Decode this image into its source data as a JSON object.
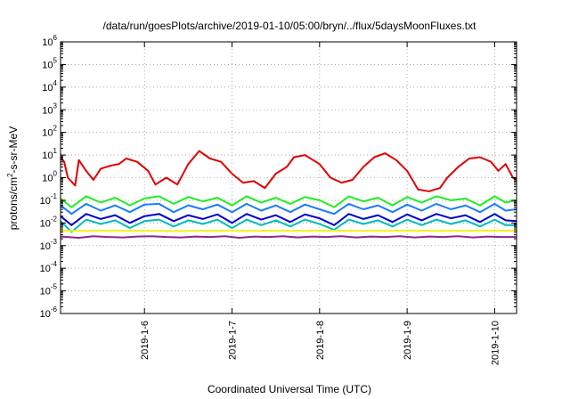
{
  "chart_data": {
    "type": "line",
    "title": "/data/run/goesPlots/archive/2019-01-10/05:00/bryn/../flux/5daysMoonFluxes.txt",
    "xlabel": "Coordinated Universal Time (UTC)",
    "ylabel": "protons/cm²-s-sr-MeV",
    "yscale": "log",
    "ylim": [
      1e-06,
      1000000.0
    ],
    "xlim": [
      "2019-01-05T01:00",
      "2019-01-10T06:00"
    ],
    "grid": true,
    "y_ticks": [
      {
        "base": "10",
        "exp": "-6",
        "value": 1e-06
      },
      {
        "base": "10",
        "exp": "-5",
        "value": 1e-05
      },
      {
        "base": "10",
        "exp": "-4",
        "value": 0.0001
      },
      {
        "base": "10",
        "exp": "-3",
        "value": 0.001
      },
      {
        "base": "10",
        "exp": "-2",
        "value": 0.01
      },
      {
        "base": "10",
        "exp": "-1",
        "value": 0.1
      },
      {
        "base": "10",
        "exp": "0",
        "value": 1
      },
      {
        "base": "10",
        "exp": "1",
        "value": 10.0
      },
      {
        "base": "10",
        "exp": "2",
        "value": 100.0
      },
      {
        "base": "10",
        "exp": "3",
        "value": 1000.0
      },
      {
        "base": "10",
        "exp": "4",
        "value": 10000.0
      },
      {
        "base": "10",
        "exp": "5",
        "value": 100000.0
      },
      {
        "base": "10",
        "exp": "6",
        "value": 1000000.0
      }
    ],
    "x_ticks": [
      {
        "label": "2019-1-6",
        "value": "2019-01-06T00:00"
      },
      {
        "label": "2019-1-7",
        "value": "2019-01-07T00:00"
      },
      {
        "label": "2019-1-8",
        "value": "2019-01-08T00:00"
      },
      {
        "label": "2019-1-9",
        "value": "2019-01-09T00:00"
      },
      {
        "label": "2019-1-10",
        "value": "2019-01-10T00:00"
      }
    ],
    "series": [
      {
        "color": "#e00000",
        "x": [
          "2019-01-05T01:00",
          "2019-01-05T02:00",
          "2019-01-05T03:00",
          "2019-01-05T05:00",
          "2019-01-05T06:00",
          "2019-01-05T08:00",
          "2019-01-05T10:00",
          "2019-01-05T12:00",
          "2019-01-05T15:00",
          "2019-01-05T17:00",
          "2019-01-05T19:00",
          "2019-01-05T22:00",
          "2019-01-06T01:00",
          "2019-01-06T03:00",
          "2019-01-06T06:00",
          "2019-01-06T09:00",
          "2019-01-06T12:00",
          "2019-01-06T15:00",
          "2019-01-06T18:00",
          "2019-01-06T21:00",
          "2019-01-07T00:00",
          "2019-01-07T03:00",
          "2019-01-07T06:00",
          "2019-01-07T09:00",
          "2019-01-07T12:00",
          "2019-01-07T15:00",
          "2019-01-07T17:00",
          "2019-01-07T20:00",
          "2019-01-08T00:00",
          "2019-01-08T03:00",
          "2019-01-08T06:00",
          "2019-01-08T09:00",
          "2019-01-08T12:00",
          "2019-01-08T15:00",
          "2019-01-08T18:00",
          "2019-01-08T21:00",
          "2019-01-09T00:00",
          "2019-01-09T03:00",
          "2019-01-09T06:00",
          "2019-01-09T09:00",
          "2019-01-09T11:00",
          "2019-01-09T14:00",
          "2019-01-09T17:00",
          "2019-01-09T20:00",
          "2019-01-09T23:00",
          "2019-01-10T01:00",
          "2019-01-10T03:00",
          "2019-01-10T04:00",
          "2019-01-10T05:00",
          "2019-01-10T06:00"
        ],
        "values": [
          8,
          5,
          1,
          0.45,
          6,
          2,
          0.8,
          2.5,
          3.5,
          4,
          7,
          5,
          2,
          0.5,
          1,
          0.5,
          4,
          15,
          7,
          5,
          1.5,
          0.6,
          0.7,
          0.35,
          1.5,
          3,
          8,
          10,
          4,
          1,
          0.6,
          0.8,
          3,
          8,
          12,
          6,
          2,
          0.3,
          0.25,
          0.35,
          1,
          3,
          7,
          8,
          5,
          2,
          4,
          2,
          1,
          0.8
        ]
      },
      {
        "color": "#22ee22",
        "x": [
          "2019-01-05T01:00",
          "2019-01-05T04:00",
          "2019-01-05T08:00",
          "2019-01-05T12:00",
          "2019-01-05T16:00",
          "2019-01-05T20:00",
          "2019-01-06T00:00",
          "2019-01-06T04:00",
          "2019-01-06T08:00",
          "2019-01-06T12:00",
          "2019-01-06T16:00",
          "2019-01-06T20:00",
          "2019-01-07T00:00",
          "2019-01-07T04:00",
          "2019-01-07T08:00",
          "2019-01-07T12:00",
          "2019-01-07T16:00",
          "2019-01-07T20:00",
          "2019-01-08T00:00",
          "2019-01-08T04:00",
          "2019-01-08T08:00",
          "2019-01-08T12:00",
          "2019-01-08T16:00",
          "2019-01-08T20:00",
          "2019-01-09T00:00",
          "2019-01-09T04:00",
          "2019-01-09T08:00",
          "2019-01-09T12:00",
          "2019-01-09T16:00",
          "2019-01-09T20:00",
          "2019-01-10T00:00",
          "2019-01-10T03:00",
          "2019-01-10T06:00"
        ],
        "values": [
          0.12,
          0.05,
          0.15,
          0.08,
          0.13,
          0.06,
          0.12,
          0.15,
          0.07,
          0.14,
          0.09,
          0.13,
          0.06,
          0.15,
          0.08,
          0.13,
          0.07,
          0.14,
          0.1,
          0.05,
          0.15,
          0.09,
          0.13,
          0.06,
          0.14,
          0.08,
          0.15,
          0.1,
          0.12,
          0.06,
          0.15,
          0.08,
          0.1
        ]
      },
      {
        "color": "#1a7cff",
        "x": [
          "2019-01-05T01:00",
          "2019-01-05T04:00",
          "2019-01-05T08:00",
          "2019-01-05T12:00",
          "2019-01-05T16:00",
          "2019-01-05T20:00",
          "2019-01-06T00:00",
          "2019-01-06T04:00",
          "2019-01-06T08:00",
          "2019-01-06T12:00",
          "2019-01-06T16:00",
          "2019-01-06T20:00",
          "2019-01-07T00:00",
          "2019-01-07T04:00",
          "2019-01-07T08:00",
          "2019-01-07T12:00",
          "2019-01-07T16:00",
          "2019-01-07T20:00",
          "2019-01-08T00:00",
          "2019-01-08T04:00",
          "2019-01-08T08:00",
          "2019-01-08T12:00",
          "2019-01-08T16:00",
          "2019-01-08T20:00",
          "2019-01-09T00:00",
          "2019-01-09T04:00",
          "2019-01-09T08:00",
          "2019-01-09T12:00",
          "2019-01-09T16:00",
          "2019-01-09T20:00",
          "2019-01-10T00:00",
          "2019-01-10T03:00",
          "2019-01-10T06:00"
        ],
        "values": [
          0.06,
          0.025,
          0.07,
          0.035,
          0.06,
          0.03,
          0.065,
          0.07,
          0.03,
          0.06,
          0.04,
          0.065,
          0.03,
          0.07,
          0.035,
          0.06,
          0.03,
          0.065,
          0.04,
          0.025,
          0.07,
          0.04,
          0.06,
          0.03,
          0.065,
          0.035,
          0.07,
          0.04,
          0.06,
          0.03,
          0.07,
          0.035,
          0.04
        ]
      },
      {
        "color": "#0000cc",
        "x": [
          "2019-01-05T01:00",
          "2019-01-05T04:00",
          "2019-01-05T08:00",
          "2019-01-05T12:00",
          "2019-01-05T16:00",
          "2019-01-05T20:00",
          "2019-01-06T00:00",
          "2019-01-06T04:00",
          "2019-01-06T08:00",
          "2019-01-06T12:00",
          "2019-01-06T16:00",
          "2019-01-06T20:00",
          "2019-01-07T00:00",
          "2019-01-07T04:00",
          "2019-01-07T08:00",
          "2019-01-07T12:00",
          "2019-01-07T16:00",
          "2019-01-07T20:00",
          "2019-01-08T00:00",
          "2019-01-08T04:00",
          "2019-01-08T08:00",
          "2019-01-08T12:00",
          "2019-01-08T16:00",
          "2019-01-08T20:00",
          "2019-01-09T00:00",
          "2019-01-09T04:00",
          "2019-01-09T08:00",
          "2019-01-09T12:00",
          "2019-01-09T16:00",
          "2019-01-09T20:00",
          "2019-01-10T00:00",
          "2019-01-10T03:00",
          "2019-01-10T06:00"
        ],
        "values": [
          0.02,
          0.008,
          0.025,
          0.015,
          0.022,
          0.01,
          0.02,
          0.025,
          0.012,
          0.022,
          0.015,
          0.024,
          0.01,
          0.025,
          0.014,
          0.022,
          0.011,
          0.024,
          0.016,
          0.008,
          0.025,
          0.015,
          0.022,
          0.011,
          0.024,
          0.013,
          0.025,
          0.016,
          0.022,
          0.011,
          0.025,
          0.013,
          0.012
        ]
      },
      {
        "color": "#00bbbb",
        "x": [
          "2019-01-05T01:00",
          "2019-01-05T04:00",
          "2019-01-05T08:00",
          "2019-01-05T12:00",
          "2019-01-05T16:00",
          "2019-01-05T20:00",
          "2019-01-06T00:00",
          "2019-01-06T04:00",
          "2019-01-06T08:00",
          "2019-01-06T12:00",
          "2019-01-06T16:00",
          "2019-01-06T20:00",
          "2019-01-07T00:00",
          "2019-01-07T04:00",
          "2019-01-07T08:00",
          "2019-01-07T12:00",
          "2019-01-07T16:00",
          "2019-01-07T20:00",
          "2019-01-08T00:00",
          "2019-01-08T04:00",
          "2019-01-08T08:00",
          "2019-01-08T12:00",
          "2019-01-08T16:00",
          "2019-01-08T20:00",
          "2019-01-09T00:00",
          "2019-01-09T04:00",
          "2019-01-09T08:00",
          "2019-01-09T12:00",
          "2019-01-09T16:00",
          "2019-01-09T20:00",
          "2019-01-10T00:00",
          "2019-01-10T03:00",
          "2019-01-10T06:00"
        ],
        "values": [
          0.012,
          0.004,
          0.014,
          0.009,
          0.013,
          0.006,
          0.012,
          0.014,
          0.007,
          0.013,
          0.009,
          0.014,
          0.006,
          0.014,
          0.008,
          0.013,
          0.007,
          0.014,
          0.009,
          0.005,
          0.014,
          0.009,
          0.013,
          0.007,
          0.014,
          0.008,
          0.014,
          0.009,
          0.013,
          0.007,
          0.014,
          0.008,
          0.008
        ]
      },
      {
        "color": "#f2f21a",
        "x": [
          "2019-01-05T01:00",
          "2019-01-05T08:00",
          "2019-01-05T16:00",
          "2019-01-06T00:00",
          "2019-01-06T08:00",
          "2019-01-06T16:00",
          "2019-01-07T00:00",
          "2019-01-07T08:00",
          "2019-01-07T16:00",
          "2019-01-08T00:00",
          "2019-01-08T08:00",
          "2019-01-08T16:00",
          "2019-01-09T00:00",
          "2019-01-09T08:00",
          "2019-01-09T16:00",
          "2019-01-10T00:00",
          "2019-01-10T06:00"
        ],
        "values": [
          0.0045,
          0.0045,
          0.0046,
          0.0045,
          0.0044,
          0.0045,
          0.0046,
          0.0045,
          0.0045,
          0.0046,
          0.0045,
          0.0045,
          0.0046,
          0.0045,
          0.0045,
          0.0046,
          0.0045
        ]
      },
      {
        "color": "#8b2a8b",
        "x": [
          "2019-01-05T01:00",
          "2019-01-05T06:00",
          "2019-01-05T10:00",
          "2019-01-05T14:00",
          "2019-01-05T18:00",
          "2019-01-05T22:00",
          "2019-01-06T02:00",
          "2019-01-06T06:00",
          "2019-01-06T10:00",
          "2019-01-06T14:00",
          "2019-01-06T18:00",
          "2019-01-06T22:00",
          "2019-01-07T02:00",
          "2019-01-07T06:00",
          "2019-01-07T10:00",
          "2019-01-07T14:00",
          "2019-01-07T18:00",
          "2019-01-07T22:00",
          "2019-01-08T02:00",
          "2019-01-08T06:00",
          "2019-01-08T10:00",
          "2019-01-08T14:00",
          "2019-01-08T18:00",
          "2019-01-08T22:00",
          "2019-01-09T02:00",
          "2019-01-09T06:00",
          "2019-01-09T10:00",
          "2019-01-09T14:00",
          "2019-01-09T18:00",
          "2019-01-09T22:00",
          "2019-01-10T02:00",
          "2019-01-10T06:00"
        ],
        "values": [
          0.0025,
          0.0022,
          0.0026,
          0.0024,
          0.0023,
          0.0025,
          0.0026,
          0.0024,
          0.0023,
          0.0025,
          0.0024,
          0.0026,
          0.0022,
          0.0025,
          0.0024,
          0.0026,
          0.0023,
          0.0025,
          0.0024,
          0.0026,
          0.0023,
          0.0025,
          0.0024,
          0.0026,
          0.0023,
          0.0025,
          0.0024,
          0.0026,
          0.0023,
          0.0025,
          0.0024,
          0.0024
        ]
      }
    ]
  }
}
